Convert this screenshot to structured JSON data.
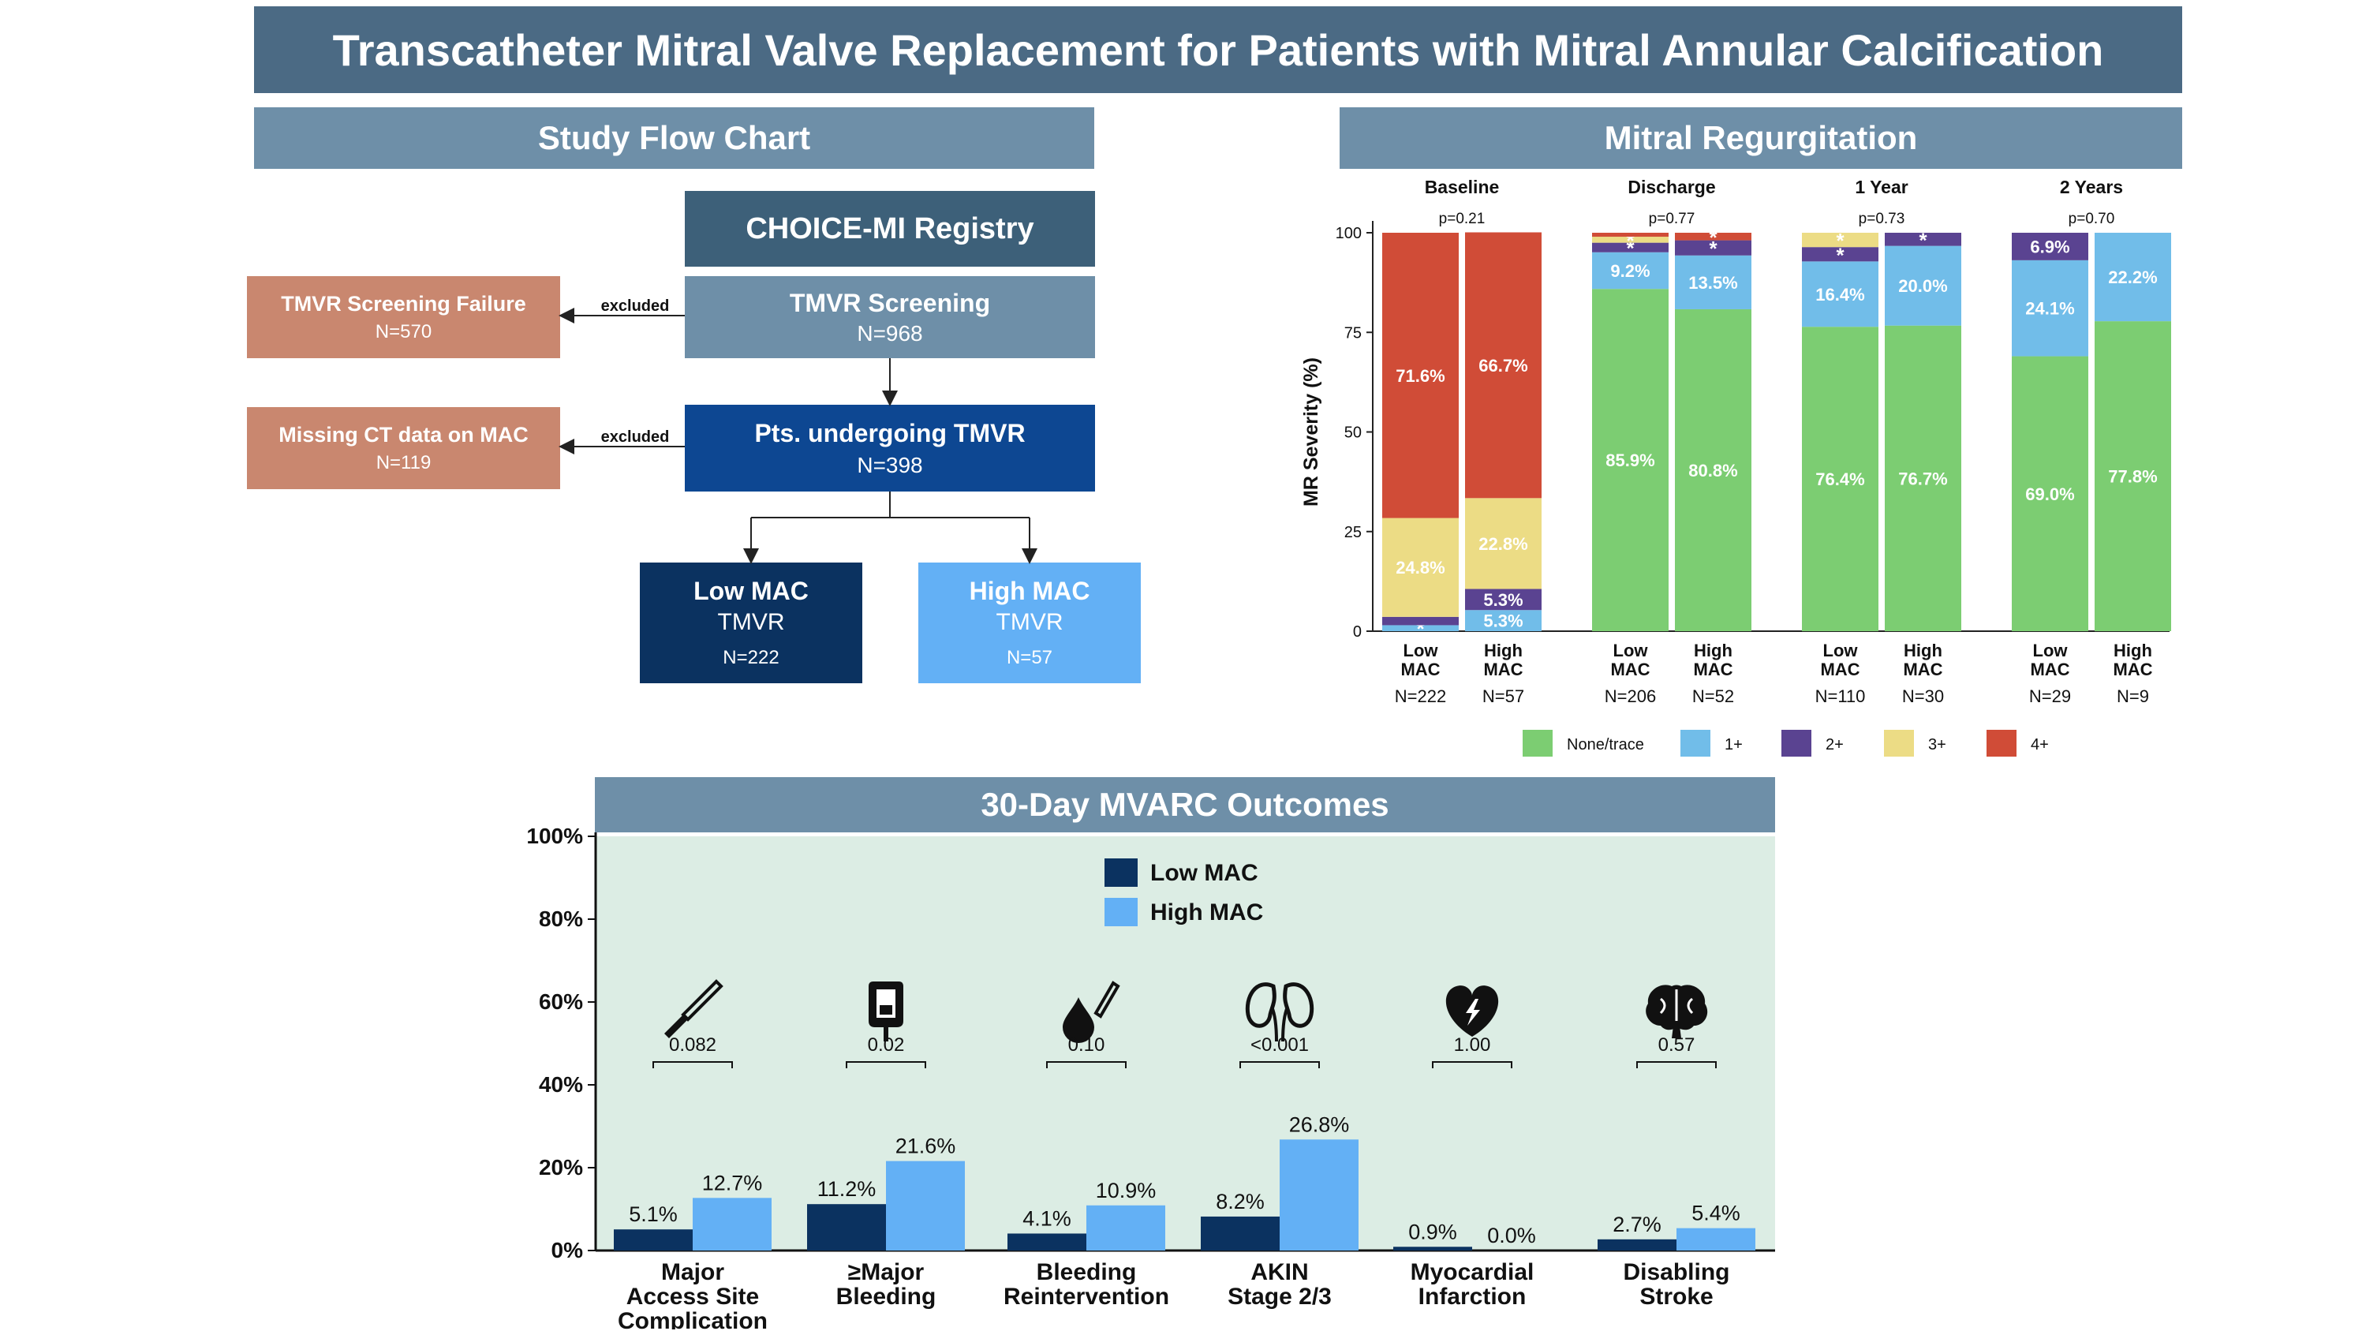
{
  "title": "Transcatheter Mitral Valve Replacement for Patients with Mitral Annular Calcification",
  "flow": {
    "header": "Study Flow Chart",
    "registry": "CHOICE-MI Registry",
    "screening": {
      "label": "TMVR Screening",
      "n": "N=968"
    },
    "screening_failure": {
      "label": "TMVR Screening Failure",
      "n": "N=570"
    },
    "missing_ct": {
      "label": "Missing CT data on MAC",
      "n": "N=119"
    },
    "excluded": "excluded",
    "undergoing": {
      "label": "Pts. undergoing TMVR",
      "n": "N=398"
    },
    "low": {
      "label": "Low MAC",
      "sub": "TMVR",
      "n": "N=222"
    },
    "high": {
      "label": "High MAC",
      "sub": "TMVR",
      "n": "N=57"
    }
  },
  "colors": {
    "banner": "#4b6a84",
    "section": "#6e8fa8",
    "registry": "#3d6079",
    "screening": "#6e8fa8",
    "undergoing": "#0d4792",
    "excluded_box": "#c9876f",
    "low_mac": "#0b3260",
    "high_mac": "#63b0f5",
    "none_trace": "#7ccd72",
    "mr1": "#71bde9",
    "mr2": "#5a4391",
    "mr3": "#ecdc85",
    "mr4": "#d04c37",
    "outcome_bg": "#dcede4"
  },
  "mr_chart": {
    "header": "Mitral Regurgitation",
    "ylabel": "MR Severity (%)",
    "yticks": [
      "0",
      "25",
      "50",
      "75",
      "100"
    ],
    "ylim": [
      0,
      100
    ],
    "legend": [
      {
        "label": "None/trace",
        "color": "#7ccd72"
      },
      {
        "label": "1+",
        "color": "#71bde9"
      },
      {
        "label": "2+",
        "color": "#5a4391"
      },
      {
        "label": "3+",
        "color": "#ecdc85"
      },
      {
        "label": "4+",
        "color": "#d04c37"
      }
    ],
    "groups": [
      {
        "name": "Baseline",
        "p": "p=0.21",
        "bars": [
          {
            "label1": "Low",
            "label2": "MAC",
            "n": "N=222",
            "seg": [
              {
                "v": 0.0,
                "t": ""
              },
              {
                "v": 1.5,
                "t": "*"
              },
              {
                "v": 2.1,
                "t": ""
              },
              {
                "v": 24.8,
                "t": "24.8%"
              },
              {
                "v": 71.6,
                "t": "71.6%"
              }
            ]
          },
          {
            "label1": "High",
            "label2": "MAC",
            "n": "N=57",
            "seg": [
              {
                "v": 0.0,
                "t": ""
              },
              {
                "v": 5.3,
                "t": "5.3%"
              },
              {
                "v": 5.3,
                "t": "5.3%"
              },
              {
                "v": 22.8,
                "t": "22.8%"
              },
              {
                "v": 66.7,
                "t": "66.7%"
              }
            ]
          }
        ]
      },
      {
        "name": "Discharge",
        "p": "p=0.77",
        "bars": [
          {
            "label1": "Low",
            "label2": "MAC",
            "n": "N=206",
            "seg": [
              {
                "v": 85.9,
                "t": "85.9%"
              },
              {
                "v": 9.2,
                "t": "9.2%"
              },
              {
                "v": 2.4,
                "t": "*"
              },
              {
                "v": 1.5,
                "t": "*"
              },
              {
                "v": 1.0,
                "t": ""
              }
            ]
          },
          {
            "label1": "High",
            "label2": "MAC",
            "n": "N=52",
            "seg": [
              {
                "v": 80.8,
                "t": "80.8%"
              },
              {
                "v": 13.5,
                "t": "13.5%"
              },
              {
                "v": 3.8,
                "t": "*"
              },
              {
                "v": 0.0,
                "t": ""
              },
              {
                "v": 1.9,
                "t": "*"
              }
            ]
          }
        ]
      },
      {
        "name": "1 Year",
        "p": "p=0.73",
        "bars": [
          {
            "label1": "Low",
            "label2": "MAC",
            "n": "N=110",
            "seg": [
              {
                "v": 76.4,
                "t": "76.4%"
              },
              {
                "v": 16.4,
                "t": "16.4%"
              },
              {
                "v": 3.6,
                "t": "*"
              },
              {
                "v": 3.6,
                "t": "*"
              },
              {
                "v": 0.0,
                "t": ""
              }
            ]
          },
          {
            "label1": "High",
            "label2": "MAC",
            "n": "N=30",
            "seg": [
              {
                "v": 76.7,
                "t": "76.7%"
              },
              {
                "v": 20.0,
                "t": "20.0%"
              },
              {
                "v": 3.3,
                "t": "*"
              },
              {
                "v": 0.0,
                "t": ""
              },
              {
                "v": 0.0,
                "t": ""
              }
            ]
          }
        ]
      },
      {
        "name": "2 Years",
        "p": "p=0.70",
        "bars": [
          {
            "label1": "Low",
            "label2": "MAC",
            "n": "N=29",
            "seg": [
              {
                "v": 69.0,
                "t": "69.0%"
              },
              {
                "v": 24.1,
                "t": "24.1%"
              },
              {
                "v": 6.9,
                "t": "6.9%"
              },
              {
                "v": 0.0,
                "t": ""
              },
              {
                "v": 0.0,
                "t": ""
              }
            ]
          },
          {
            "label1": "High",
            "label2": "MAC",
            "n": "N=9",
            "seg": [
              {
                "v": 77.8,
                "t": "77.8%"
              },
              {
                "v": 22.2,
                "t": "22.2%"
              },
              {
                "v": 0.0,
                "t": ""
              },
              {
                "v": 0.0,
                "t": ""
              },
              {
                "v": 0.0,
                "t": ""
              }
            ]
          }
        ]
      }
    ]
  },
  "chart_data": {
    "type": "bar",
    "title": "30-Day MVARC Outcomes",
    "yticks": [
      "0%",
      "20%",
      "40%",
      "60%",
      "80%",
      "100%"
    ],
    "ylim": [
      0,
      100
    ],
    "legend": [
      "Low MAC",
      "High MAC"
    ],
    "categories": [
      {
        "lines": [
          "Major",
          "Access Site",
          "Complication"
        ],
        "icon": "scalpel-icon",
        "p": "0.082"
      },
      {
        "lines": [
          "≥Major",
          "Bleeding"
        ],
        "icon": "blood-bag-icon",
        "p": "0.02"
      },
      {
        "lines": [
          "Bleeding",
          "Reintervention"
        ],
        "icon": "blood-drop-scalpel-icon",
        "p": "0.10"
      },
      {
        "lines": [
          "AKIN",
          "Stage 2/3"
        ],
        "icon": "kidneys-icon",
        "p": "<0.001"
      },
      {
        "lines": [
          "Myocardial",
          "Infarction"
        ],
        "icon": "heart-lightning-icon",
        "p": "1.00"
      },
      {
        "lines": [
          "Disabling",
          "Stroke"
        ],
        "icon": "brain-icon",
        "p": "0.57"
      }
    ],
    "series": [
      {
        "name": "Low MAC",
        "color": "#0b3260",
        "values": [
          5.1,
          11.2,
          4.1,
          8.2,
          0.9,
          2.7
        ],
        "labels": [
          "5.1%",
          "11.2%",
          "4.1%",
          "8.2%",
          "0.9%",
          "2.7%"
        ]
      },
      {
        "name": "High MAC",
        "color": "#63b0f5",
        "values": [
          12.7,
          21.6,
          10.9,
          26.8,
          0.0,
          5.4
        ],
        "labels": [
          "12.7%",
          "21.6%",
          "10.9%",
          "26.8%",
          "0.0%",
          "5.4%"
        ]
      }
    ]
  }
}
